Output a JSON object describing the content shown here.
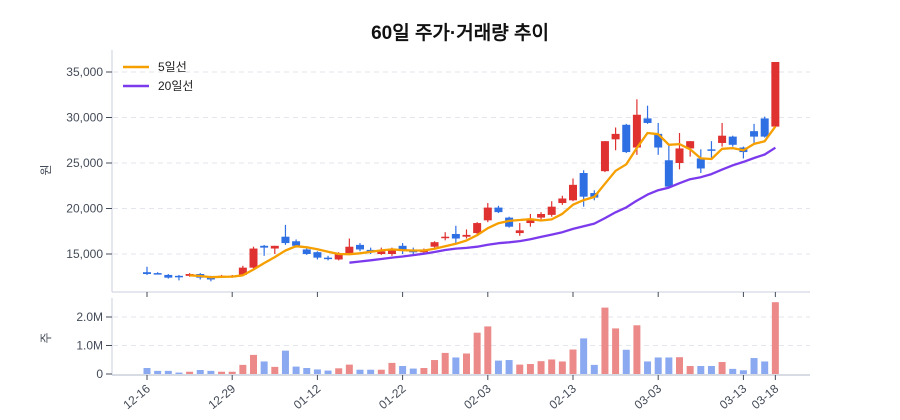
{
  "chart_data": {
    "type": "candlestick",
    "title": "60일 주가·거래량 추이",
    "price_ylabel": "원",
    "volume_ylabel": "주",
    "price_ylim": [
      11000,
      37500
    ],
    "price_yticks": [
      15000,
      20000,
      25000,
      30000,
      35000
    ],
    "price_ytick_labels": [
      "15,000",
      "20,000",
      "25,000",
      "30,000",
      "35,000"
    ],
    "volume_ylim": [
      0,
      2700000
    ],
    "volume_yticks": [
      0,
      1000000,
      2000000
    ],
    "volume_ytick_labels": [
      "0",
      "1.0M",
      "2.0M"
    ],
    "x_tick_labels": [
      {
        "index": 0,
        "label": "12-16"
      },
      {
        "index": 8,
        "label": "12-29"
      },
      {
        "index": 16,
        "label": "01-12"
      },
      {
        "index": 24,
        "label": "01-22"
      },
      {
        "index": 32,
        "label": "02-03"
      },
      {
        "index": 40,
        "label": "02-13"
      },
      {
        "index": 48,
        "label": "03-03"
      },
      {
        "index": 56,
        "label": "03-13"
      },
      {
        "index": 59,
        "label": "03-18"
      }
    ],
    "legend": [
      {
        "name": "5일선",
        "color": "#f59f00",
        "window": 5
      },
      {
        "name": "20일선",
        "color": "#7c3aed",
        "window": 20
      }
    ],
    "legend_position": "top-left",
    "grid": true,
    "colors": {
      "up": "#e03131",
      "down": "#2f6fe4",
      "up_volume": "#ec8a8a",
      "down_volume": "#8aa9f0"
    },
    "open": [
      13000,
      12900,
      12700,
      12600,
      12600,
      12800,
      12500,
      12500,
      12500,
      12700,
      13500,
      15900,
      15600,
      16900,
      16400,
      15500,
      15200,
      14600,
      14400,
      15100,
      16000,
      15450,
      15000,
      15000,
      15900,
      15350,
      15200,
      15800,
      16800,
      17200,
      16900,
      17300,
      18700,
      20100,
      19000,
      17300,
      18400,
      19000,
      19300,
      20600,
      20900,
      23900,
      21700,
      24100,
      27600,
      29200,
      26700,
      29900,
      28200,
      25300,
      25000,
      26600,
      25500,
      26500,
      27200,
      27900,
      26700,
      28500,
      29900,
      29000
    ],
    "high": [
      13600,
      13000,
      12800,
      12700,
      12900,
      12900,
      12600,
      12700,
      12700,
      13700,
      15800,
      16000,
      15900,
      18200,
      16600,
      15700,
      15300,
      14800,
      15200,
      16700,
      16200,
      15700,
      15700,
      15700,
      16200,
      15700,
      15600,
      16400,
      17400,
      18100,
      17700,
      18500,
      20600,
      20300,
      19100,
      18400,
      19400,
      19600,
      20800,
      21400,
      23300,
      24200,
      22000,
      27400,
      28900,
      29300,
      32000,
      31300,
      29400,
      27000,
      28300,
      27400,
      26500,
      27400,
      29400,
      28000,
      26800,
      29300,
      30100,
      36100
    ],
    "low": [
      12700,
      12800,
      12300,
      12100,
      12500,
      12200,
      12000,
      12400,
      12400,
      12600,
      13400,
      14800,
      15000,
      16000,
      15700,
      14900,
      14400,
      14300,
      14300,
      14900,
      15300,
      15000,
      14900,
      14800,
      15000,
      14900,
      15100,
      15700,
      16500,
      16200,
      16700,
      17200,
      18500,
      19500,
      17900,
      17000,
      18000,
      18800,
      19100,
      20400,
      20800,
      20200,
      20900,
      24000,
      26400,
      26100,
      25900,
      29300,
      25900,
      22300,
      24300,
      25700,
      23900,
      25500,
      26800,
      26800,
      25500,
      27100,
      27800,
      28900
    ],
    "close": [
      12800,
      12850,
      12400,
      12450,
      12800,
      12400,
      12200,
      12600,
      12600,
      13500,
      15600,
      15700,
      15900,
      16200,
      15900,
      15000,
      14600,
      14500,
      15000,
      15800,
      15500,
      15400,
      15300,
      15500,
      15400,
      15300,
      15400,
      16300,
      16900,
      16700,
      17100,
      18400,
      20100,
      19600,
      18000,
      17600,
      18800,
      19400,
      20200,
      21100,
      22600,
      21300,
      21200,
      27400,
      28200,
      26200,
      30300,
      29400,
      26700,
      22400,
      26600,
      27400,
      24400,
      26400,
      28000,
      27000,
      26200,
      27900,
      27900,
      36100
    ],
    "volume": [
      210000,
      110000,
      110000,
      50000,
      80000,
      140000,
      110000,
      80000,
      80000,
      320000,
      670000,
      440000,
      250000,
      820000,
      260000,
      210000,
      160000,
      120000,
      200000,
      330000,
      150000,
      150000,
      150000,
      390000,
      280000,
      190000,
      210000,
      490000,
      740000,
      580000,
      720000,
      1450000,
      1670000,
      470000,
      490000,
      330000,
      350000,
      450000,
      510000,
      440000,
      860000,
      1250000,
      320000,
      2330000,
      1600000,
      850000,
      1710000,
      440000,
      580000,
      580000,
      590000,
      280000,
      280000,
      280000,
      420000,
      180000,
      130000,
      560000,
      440000,
      2520000
    ]
  }
}
